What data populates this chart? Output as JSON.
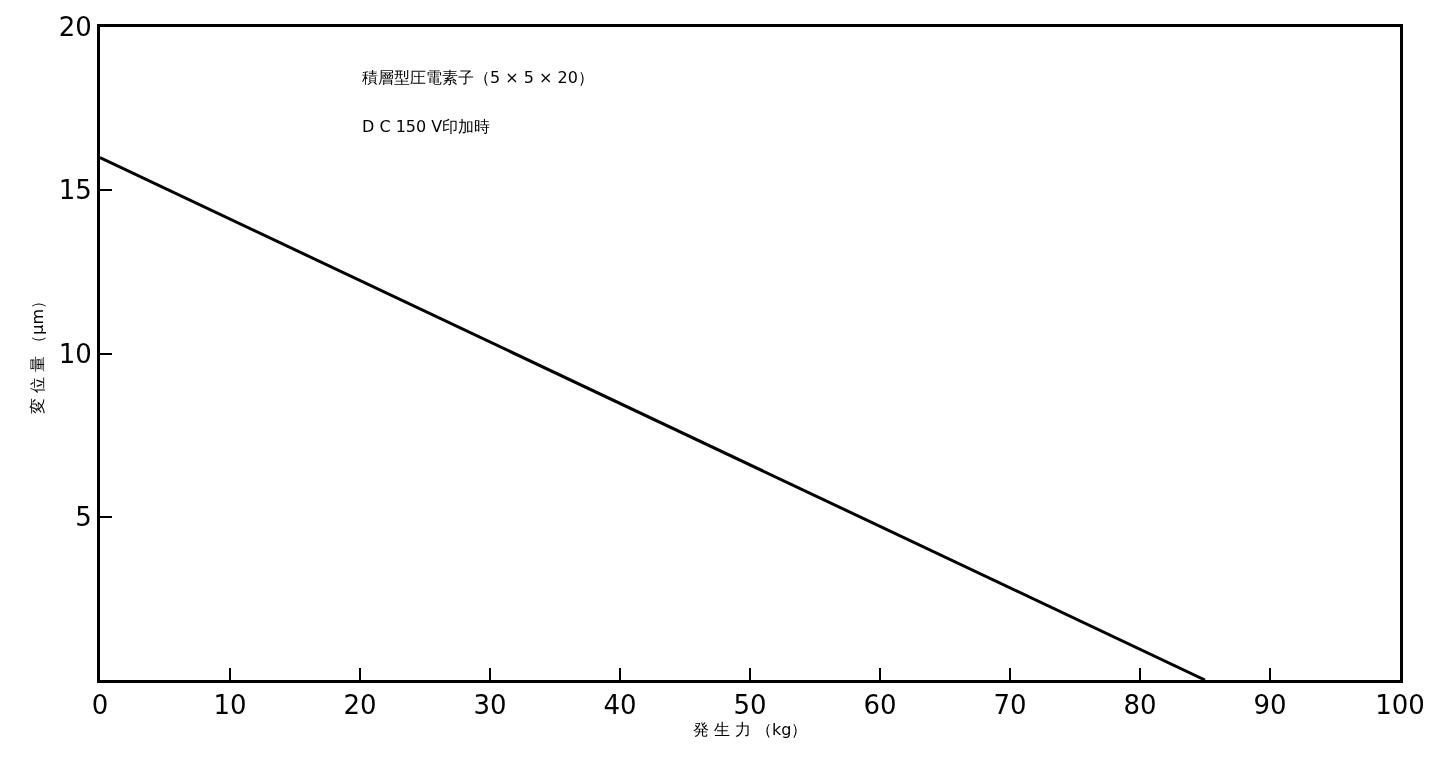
{
  "chart_data": {
    "type": "line",
    "xlabel": "発 生 力 （kg）",
    "ylabel": "変 位 量 （μm）",
    "annotations": [
      "積層型圧電素子（5 × 5 × 20）",
      "D C 150 V印加時"
    ],
    "x": [
      0,
      85
    ],
    "series": [
      {
        "color": "#000000",
        "values": [
          16,
          0
        ]
      }
    ],
    "xlim": [
      0,
      100
    ],
    "xticks": [
      0,
      10,
      20,
      30,
      40,
      50,
      60,
      70,
      80,
      90,
      100
    ],
    "ylim": [
      0,
      20
    ],
    "yticks": [
      5,
      10,
      15,
      20
    ],
    "marker": "none",
    "line_style": "solid"
  }
}
